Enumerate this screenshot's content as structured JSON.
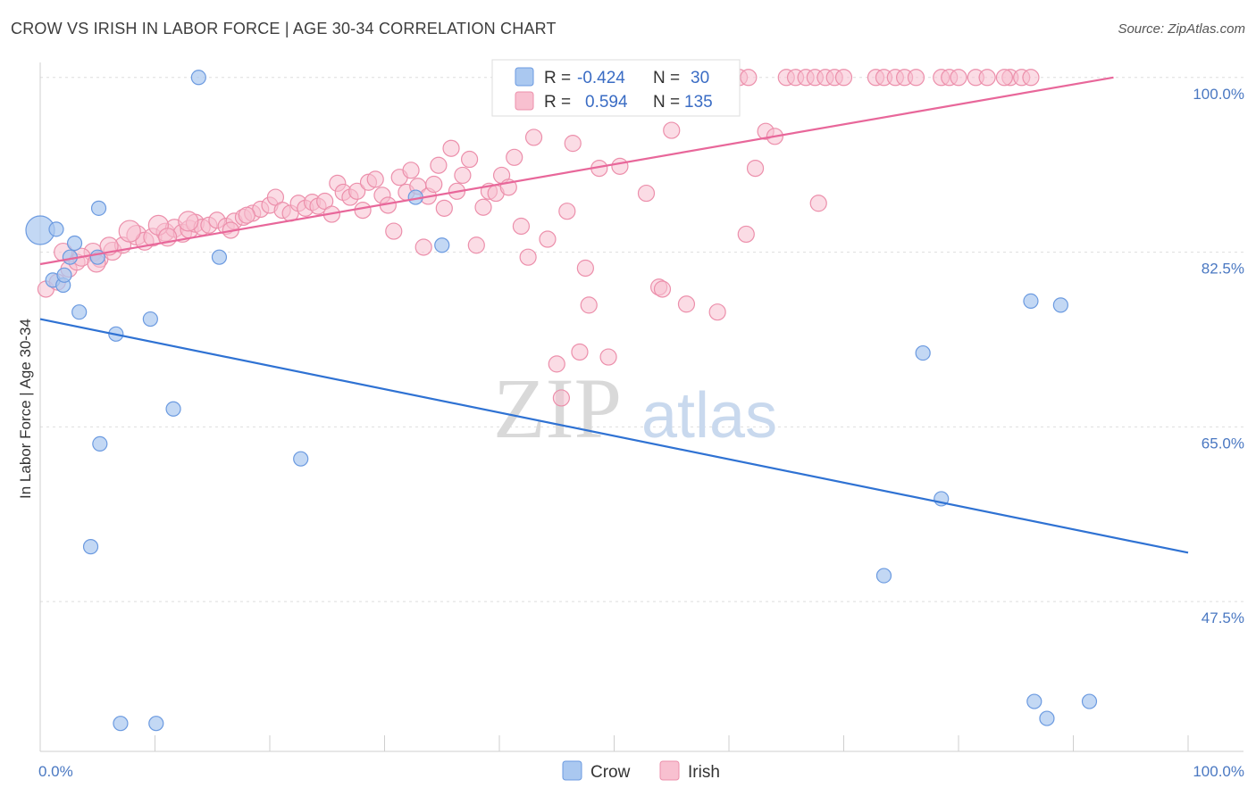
{
  "header": {
    "title": "CROW VS IRISH IN LABOR FORCE | AGE 30-34 CORRELATION CHART",
    "source": "Source: ZipAtlas.com"
  },
  "watermark": {
    "zip": "ZIP",
    "atlas": "atlas"
  },
  "legend": {
    "r_label": "R =",
    "n_label": "N =",
    "crow": {
      "r": "-0.424",
      "n": "30"
    },
    "irish": {
      "r": "0.594",
      "n": "135"
    }
  },
  "chart_data": {
    "type": "scatter",
    "title": "CROW VS IRISH IN LABOR FORCE | AGE 30-34 CORRELATION CHART",
    "xlabel": "",
    "ylabel": "In Labor Force | Age 30-34",
    "xlim": [
      0,
      100
    ],
    "ylim": [
      32.5,
      101.5
    ],
    "x_tick_labels": [
      "0.0%",
      "100.0%"
    ],
    "y_ticks": [
      {
        "value": 100.0,
        "label": "100.0%"
      },
      {
        "value": 82.5,
        "label": "82.5%"
      },
      {
        "value": 65.0,
        "label": "65.0%"
      },
      {
        "value": 47.5,
        "label": "47.5%"
      }
    ],
    "grid": true,
    "colors": {
      "crow_fill": "#aac8f0",
      "crow_stroke": "#6b9ae0",
      "crow_line": "#2f72d3",
      "irish_fill": "#f8c0d0",
      "irish_stroke": "#ec8fab",
      "irish_line": "#e8679a",
      "axis_text": "#4a78c2"
    },
    "series": [
      {
        "name": "Crow",
        "trend": {
          "x0": 0,
          "y0": 75.8,
          "x1": 100,
          "y1": 52.4
        },
        "points": [
          [
            0.0,
            84.7,
            16
          ],
          [
            1.4,
            84.8,
            8
          ],
          [
            1.1,
            79.7,
            8
          ],
          [
            2.0,
            79.2,
            8
          ],
          [
            2.1,
            80.2,
            8
          ],
          [
            2.6,
            82.0,
            8
          ],
          [
            3.0,
            83.4,
            8
          ],
          [
            3.4,
            76.5,
            8
          ],
          [
            5.1,
            86.9,
            8
          ],
          [
            5.0,
            82.0,
            8
          ],
          [
            6.6,
            74.3,
            8
          ],
          [
            9.6,
            75.8,
            8
          ],
          [
            13.8,
            100.0,
            8
          ],
          [
            15.6,
            82.0,
            8
          ],
          [
            11.6,
            66.8,
            8
          ],
          [
            5.2,
            63.3,
            8
          ],
          [
            4.4,
            53.0,
            8
          ],
          [
            7.0,
            35.3,
            8
          ],
          [
            10.1,
            35.3,
            8
          ],
          [
            22.7,
            61.8,
            8
          ],
          [
            32.7,
            88.0,
            8
          ],
          [
            35.0,
            83.2,
            8
          ],
          [
            76.9,
            72.4,
            8
          ],
          [
            78.5,
            57.8,
            8
          ],
          [
            73.5,
            50.1,
            8
          ],
          [
            86.3,
            77.6,
            8
          ],
          [
            88.9,
            77.2,
            8
          ],
          [
            86.6,
            37.5,
            8
          ],
          [
            87.7,
            35.8,
            8
          ],
          [
            91.4,
            37.5,
            8
          ]
        ]
      },
      {
        "name": "Irish",
        "trend": {
          "x0": 0,
          "y0": 81.3,
          "x1": 93.5,
          "y1": 100.0
        },
        "points": [
          [
            0.5,
            78.8,
            9
          ],
          [
            1.5,
            79.5,
            9
          ],
          [
            2.5,
            80.8,
            9
          ],
          [
            3.2,
            81.5,
            9
          ],
          [
            4.6,
            82.5,
            10
          ],
          [
            5.2,
            81.8,
            9
          ],
          [
            6.3,
            82.6,
            10
          ],
          [
            7.2,
            83.2,
            9
          ],
          [
            8.4,
            84.2,
            11
          ],
          [
            9.1,
            83.6,
            10
          ],
          [
            9.8,
            84.0,
            10
          ],
          [
            10.9,
            84.5,
            10
          ],
          [
            11.7,
            84.9,
            10
          ],
          [
            12.4,
            84.4,
            10
          ],
          [
            13.0,
            84.8,
            10
          ],
          [
            13.5,
            85.4,
            10
          ],
          [
            14.1,
            85.0,
            9
          ],
          [
            14.7,
            85.2,
            9
          ],
          [
            15.4,
            85.7,
            9
          ],
          [
            16.2,
            85.1,
            9
          ],
          [
            16.9,
            85.6,
            9
          ],
          [
            17.7,
            86.0,
            9
          ],
          [
            18.5,
            86.4,
            9
          ],
          [
            19.2,
            86.8,
            9
          ],
          [
            20.0,
            87.2,
            9
          ],
          [
            20.5,
            88.0,
            9
          ],
          [
            21.1,
            86.7,
            9
          ],
          [
            21.8,
            86.4,
            9
          ],
          [
            22.5,
            87.4,
            9
          ],
          [
            23.1,
            86.9,
            9
          ],
          [
            23.7,
            87.5,
            9
          ],
          [
            24.2,
            87.1,
            9
          ],
          [
            24.8,
            87.6,
            9
          ],
          [
            25.4,
            86.3,
            9
          ],
          [
            25.9,
            89.4,
            9
          ],
          [
            26.4,
            88.5,
            9
          ],
          [
            27.0,
            88.0,
            9
          ],
          [
            27.6,
            88.6,
            9
          ],
          [
            28.1,
            86.7,
            9
          ],
          [
            28.6,
            89.5,
            9
          ],
          [
            29.2,
            89.8,
            9
          ],
          [
            29.8,
            88.2,
            9
          ],
          [
            30.3,
            87.2,
            9
          ],
          [
            30.8,
            84.6,
            9
          ],
          [
            31.3,
            90.0,
            9
          ],
          [
            31.9,
            88.5,
            9
          ],
          [
            32.3,
            90.7,
            9
          ],
          [
            32.9,
            89.1,
            9
          ],
          [
            33.4,
            83.0,
            9
          ],
          [
            33.8,
            88.1,
            9
          ],
          [
            34.3,
            89.3,
            9
          ],
          [
            34.7,
            91.2,
            9
          ],
          [
            35.2,
            86.9,
            9
          ],
          [
            35.8,
            92.9,
            9
          ],
          [
            36.3,
            88.6,
            9
          ],
          [
            36.8,
            90.2,
            9
          ],
          [
            37.4,
            91.8,
            9
          ],
          [
            38.0,
            83.2,
            9
          ],
          [
            38.6,
            87.0,
            9
          ],
          [
            39.1,
            88.6,
            9
          ],
          [
            39.7,
            88.4,
            9
          ],
          [
            40.2,
            90.2,
            9
          ],
          [
            40.8,
            89.0,
            9
          ],
          [
            41.3,
            92.0,
            9
          ],
          [
            41.9,
            85.1,
            9
          ],
          [
            42.5,
            82.0,
            9
          ],
          [
            43.0,
            94.0,
            9
          ],
          [
            43.5,
            98.5,
            9
          ],
          [
            44.2,
            83.8,
            9
          ],
          [
            45.0,
            71.3,
            9
          ],
          [
            45.4,
            67.9,
            9
          ],
          [
            45.9,
            86.6,
            9
          ],
          [
            46.4,
            93.4,
            9
          ],
          [
            47.0,
            72.5,
            9
          ],
          [
            47.5,
            80.9,
            9
          ],
          [
            47.8,
            77.2,
            9
          ],
          [
            48.7,
            90.9,
            9
          ],
          [
            49.5,
            72.0,
            9
          ],
          [
            50.5,
            91.1,
            9
          ],
          [
            52.8,
            88.4,
            9
          ],
          [
            53.9,
            79.0,
            9
          ],
          [
            54.2,
            78.8,
            9
          ],
          [
            55.0,
            94.7,
            9
          ],
          [
            56.3,
            77.3,
            9
          ],
          [
            59.0,
            76.5,
            9
          ],
          [
            61.5,
            84.3,
            9
          ],
          [
            62.3,
            90.9,
            9
          ],
          [
            63.2,
            94.6,
            9
          ],
          [
            64.0,
            94.1,
            9
          ],
          [
            67.8,
            87.4,
            9
          ],
          [
            51.3,
            100.0,
            9
          ],
          [
            52.0,
            100.0,
            9
          ],
          [
            52.6,
            100.0,
            9
          ],
          [
            53.3,
            100.0,
            9
          ],
          [
            54.1,
            100.0,
            9
          ],
          [
            55.0,
            100.0,
            9
          ],
          [
            55.8,
            100.0,
            9
          ],
          [
            56.7,
            100.0,
            9
          ],
          [
            57.5,
            100.0,
            9
          ],
          [
            58.4,
            100.0,
            9
          ],
          [
            59.2,
            100.0,
            9
          ],
          [
            60.0,
            100.0,
            9
          ],
          [
            60.9,
            100.0,
            9
          ],
          [
            61.7,
            100.0,
            9
          ],
          [
            65.0,
            100.0,
            9
          ],
          [
            65.8,
            100.0,
            9
          ],
          [
            66.7,
            100.0,
            9
          ],
          [
            67.5,
            100.0,
            9
          ],
          [
            68.4,
            100.0,
            9
          ],
          [
            69.2,
            100.0,
            9
          ],
          [
            70.0,
            100.0,
            9
          ],
          [
            72.8,
            100.0,
            9
          ],
          [
            73.5,
            100.0,
            9
          ],
          [
            74.5,
            100.0,
            9
          ],
          [
            75.3,
            100.0,
            9
          ],
          [
            76.3,
            100.0,
            9
          ],
          [
            78.5,
            100.0,
            9
          ],
          [
            79.2,
            100.0,
            9
          ],
          [
            80.0,
            100.0,
            9
          ],
          [
            81.5,
            100.0,
            9
          ],
          [
            82.5,
            100.0,
            9
          ],
          [
            84.5,
            100.0,
            9
          ],
          [
            85.5,
            100.0,
            9
          ],
          [
            86.3,
            100.0,
            9
          ],
          [
            84.0,
            100.0,
            9
          ],
          [
            2.0,
            82.5,
            10
          ],
          [
            3.6,
            82.0,
            10
          ],
          [
            4.9,
            81.4,
            10
          ],
          [
            6.0,
            83.1,
            10
          ],
          [
            7.8,
            84.6,
            12
          ],
          [
            10.3,
            85.2,
            11
          ],
          [
            12.9,
            85.6,
            11
          ],
          [
            11.1,
            84.0,
            10
          ],
          [
            16.6,
            84.7,
            9
          ],
          [
            18.0,
            86.2,
            9
          ]
        ]
      }
    ]
  },
  "bottom_legend": {
    "crow": "Crow",
    "irish": "Irish"
  }
}
